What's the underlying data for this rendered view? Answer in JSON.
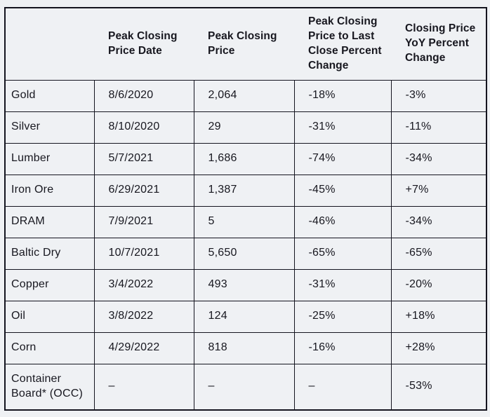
{
  "colors": {
    "background": "#eff1f4",
    "border": "#14141f",
    "text": "#17171f"
  },
  "chart_data": {
    "type": "table",
    "columns": [
      "",
      "Peak Closing Price Date",
      "Peak Closing Price",
      "Peak Closing Price to Last Close Percent Change",
      "Closing Price YoY Percent Change"
    ],
    "rows": [
      [
        "Gold",
        "8/6/2020",
        "2,064",
        "-18%",
        "-3%"
      ],
      [
        "Silver",
        "8/10/2020",
        "29",
        "-31%",
        "-11%"
      ],
      [
        "Lumber",
        "5/7/2021",
        "1,686",
        "-74%",
        "-34%"
      ],
      [
        "Iron Ore",
        "6/29/2021",
        "1,387",
        "-45%",
        "+7%"
      ],
      [
        "DRAM",
        "7/9/2021",
        "5",
        "-46%",
        "-34%"
      ],
      [
        "Baltic Dry",
        "10/7/2021",
        "5,650",
        "-65%",
        "-65%"
      ],
      [
        "Copper",
        "3/4/2022",
        "493",
        "-31%",
        "-20%"
      ],
      [
        "Oil",
        "3/8/2022",
        "124",
        "-25%",
        "+18%"
      ],
      [
        "Corn",
        "4/29/2022",
        "818",
        "-16%",
        "+28%"
      ],
      [
        "Container Board* (OCC)",
        "–",
        "–",
        "–",
        "-53%"
      ]
    ]
  }
}
